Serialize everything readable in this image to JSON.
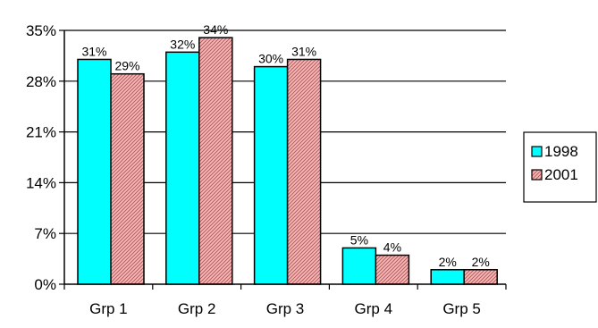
{
  "chart_data": {
    "type": "bar",
    "categories": [
      "Grp 1",
      "Grp 2",
      "Grp 3",
      "Grp 4",
      "Grp 5"
    ],
    "series": [
      {
        "name": "1998",
        "values": [
          31,
          32,
          30,
          5,
          2
        ],
        "labels": [
          "31%",
          "32%",
          "30%",
          "5%",
          "2%"
        ],
        "color": "#00FFFF",
        "pattern": "solid"
      },
      {
        "name": "2001",
        "values": [
          29,
          34,
          31,
          4,
          2
        ],
        "labels": [
          "29%",
          "34%",
          "31%",
          "4%",
          "2%"
        ],
        "color": "#F4B6B6",
        "pattern": "hatched"
      }
    ],
    "yticks": [
      {
        "value": 0,
        "label": "0%"
      },
      {
        "value": 7,
        "label": "7%"
      },
      {
        "value": 14,
        "label": "14%"
      },
      {
        "value": 21,
        "label": "21%"
      },
      {
        "value": 28,
        "label": "28%"
      },
      {
        "value": 35,
        "label": "35%"
      }
    ],
    "ylim": [
      0,
      35
    ],
    "grid": true,
    "legend_position": "right",
    "title": "",
    "xlabel": "",
    "ylabel": ""
  }
}
